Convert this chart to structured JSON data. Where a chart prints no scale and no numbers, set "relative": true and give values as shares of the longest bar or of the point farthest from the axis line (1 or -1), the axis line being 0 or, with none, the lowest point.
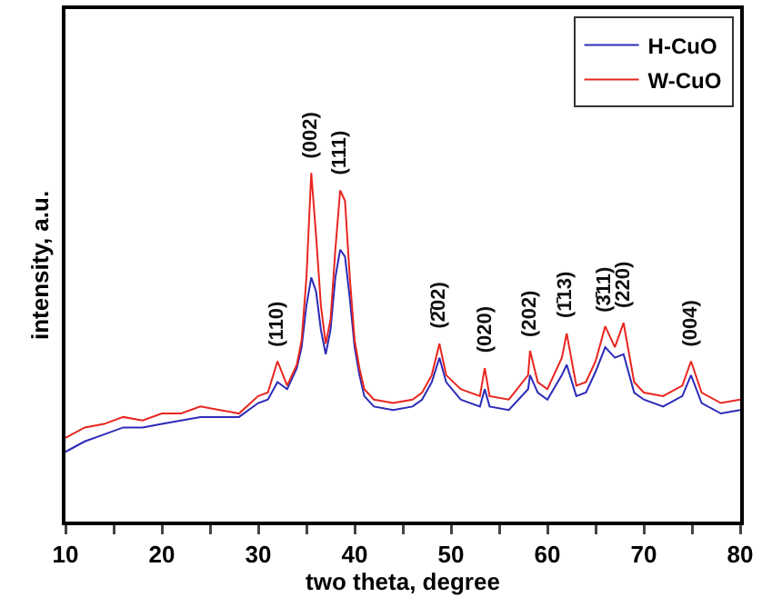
{
  "chart_data": {
    "type": "line",
    "relative": true,
    "xlabel": "two theta, degree",
    "ylabel": "intensity, a.u.",
    "xlim": [
      10,
      80
    ],
    "xticks": [
      10,
      {
        "value": 15,
        "label": null
      },
      20,
      {
        "value": 25,
        "label": null
      },
      30,
      {
        "value": 35,
        "label": null
      },
      40,
      {
        "value": 45,
        "label": null
      },
      50,
      {
        "value": 55,
        "label": null
      },
      60,
      {
        "value": 65,
        "label": null
      },
      70,
      {
        "value": 75,
        "label": null
      },
      80
    ],
    "x": [
      10,
      12,
      14,
      16,
      18,
      20,
      22,
      24,
      26,
      28,
      30,
      31,
      32,
      33,
      34,
      34.5,
      35,
      35.5,
      36,
      36.5,
      37,
      37.5,
      38,
      38.5,
      39,
      39.5,
      40,
      40.5,
      41,
      42,
      44,
      46,
      47,
      48,
      48.8,
      49.5,
      51,
      53,
      53.5,
      54,
      56,
      58,
      58.2,
      59,
      60,
      61.5,
      62,
      63,
      64,
      65,
      66,
      67,
      67.9,
      69,
      70,
      72,
      74,
      74.9,
      76,
      78,
      80
    ],
    "series": [
      {
        "name": "H-CuO",
        "color": "#2b2bb8",
        "values": [
          0.2,
          0.23,
          0.25,
          0.27,
          0.27,
          0.28,
          0.29,
          0.3,
          0.3,
          0.3,
          0.34,
          0.35,
          0.4,
          0.38,
          0.44,
          0.5,
          0.62,
          0.7,
          0.66,
          0.55,
          0.48,
          0.55,
          0.7,
          0.78,
          0.76,
          0.64,
          0.5,
          0.42,
          0.36,
          0.33,
          0.32,
          0.33,
          0.35,
          0.4,
          0.47,
          0.4,
          0.35,
          0.33,
          0.38,
          0.33,
          0.32,
          0.38,
          0.42,
          0.37,
          0.35,
          0.42,
          0.45,
          0.36,
          0.37,
          0.43,
          0.5,
          0.47,
          0.48,
          0.37,
          0.35,
          0.33,
          0.36,
          0.42,
          0.34,
          0.31,
          0.32
        ]
      },
      {
        "name": "W-CuO",
        "color": "#e8261f",
        "values": [
          0.24,
          0.27,
          0.28,
          0.3,
          0.29,
          0.31,
          0.31,
          0.33,
          0.32,
          0.31,
          0.36,
          0.37,
          0.46,
          0.39,
          0.45,
          0.52,
          0.7,
          1.0,
          0.82,
          0.62,
          0.51,
          0.58,
          0.78,
          0.95,
          0.92,
          0.7,
          0.52,
          0.44,
          0.38,
          0.35,
          0.34,
          0.35,
          0.37,
          0.42,
          0.51,
          0.42,
          0.38,
          0.36,
          0.44,
          0.36,
          0.35,
          0.42,
          0.49,
          0.4,
          0.38,
          0.47,
          0.54,
          0.39,
          0.4,
          0.46,
          0.56,
          0.5,
          0.57,
          0.4,
          0.37,
          0.36,
          0.39,
          0.46,
          0.37,
          0.34,
          0.35
        ]
      }
    ],
    "annotations": [
      {
        "text": "(110)",
        "x": 32,
        "y": 0.46
      },
      {
        "text": "(002)",
        "x": 35.5,
        "y": 1.0
      },
      {
        "text": "(111)",
        "x": 38.5,
        "y": 0.95
      },
      {
        "text": "(2̄02)",
        "x": 48.8,
        "y": 0.51
      },
      {
        "text": "(020)",
        "x": 53.5,
        "y": 0.44
      },
      {
        "text": "(202)",
        "x": 58.2,
        "y": 0.49
      },
      {
        "text": "(1̄13)",
        "x": 62,
        "y": 0.54
      },
      {
        "text": "(3̄11)",
        "x": 66,
        "y": 0.56
      },
      {
        "text": "(220)",
        "x": 67.9,
        "y": 0.57
      },
      {
        "text": "(004)",
        "x": 74.9,
        "y": 0.46
      }
    ],
    "legend": "top right",
    "grid": false,
    "marker": "none",
    "line_style": "solid"
  }
}
